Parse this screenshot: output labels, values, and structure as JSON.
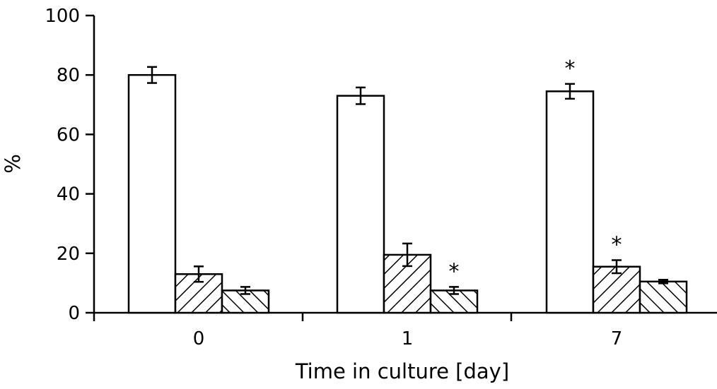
{
  "chart_data": {
    "type": "bar",
    "categories": [
      "0",
      "1",
      "7"
    ],
    "xlabel": "Time in culture [day]",
    "ylabel": "%",
    "ylim": [
      0,
      100
    ],
    "yticks": [
      "0",
      "20",
      "40",
      "60",
      "80",
      "100"
    ],
    "legend": "none",
    "grid": false,
    "series": [
      {
        "pattern": "open",
        "fill": "#ffffff",
        "values": [
          80,
          73,
          74.5
        ],
        "errors": [
          2.7,
          2.8,
          2.5
        ],
        "significant": [
          false,
          false,
          true
        ]
      },
      {
        "pattern": "hatch-diag-up",
        "fill": "#ffffff",
        "values": [
          13,
          19.5,
          15.5
        ],
        "errors": [
          2.6,
          3.8,
          2.2
        ],
        "significant": [
          false,
          false,
          true
        ]
      },
      {
        "pattern": "hatch-diag-down",
        "fill": "#ffffff",
        "values": [
          7.5,
          7.5,
          10.5
        ],
        "errors": [
          1.2,
          1.2,
          0.6
        ],
        "significant": [
          false,
          true,
          false
        ]
      }
    ],
    "significance_marker": "*"
  }
}
